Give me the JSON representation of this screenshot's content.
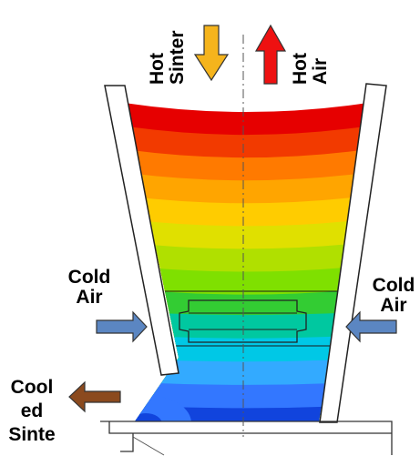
{
  "labels": {
    "hot_sinter": [
      "Hot",
      "Sinter"
    ],
    "hot_air": [
      "Hot",
      "Air"
    ],
    "cold_air_left": [
      "Cold",
      "Air"
    ],
    "cold_air_right": [
      "Cold",
      "Air"
    ],
    "cooled_sinter": [
      "Cool",
      "ed",
      "Sinte"
    ]
  },
  "colors": {
    "hot_sinter_arrow": "#f5b41c",
    "hot_air_arrow": "#ee1111",
    "cold_air_arrow": "#5b86c2",
    "cooled_sinter_arrow": "#8b4a1e",
    "temperature_scale": [
      "#e60000",
      "#f23a00",
      "#ff7a00",
      "#ffa500",
      "#ffcc00",
      "#e0e000",
      "#b0e000",
      "#7fe000",
      "#33cc33",
      "#00c8a0",
      "#00c8e6",
      "#33aaff",
      "#3377ff",
      "#1144dd"
    ]
  }
}
